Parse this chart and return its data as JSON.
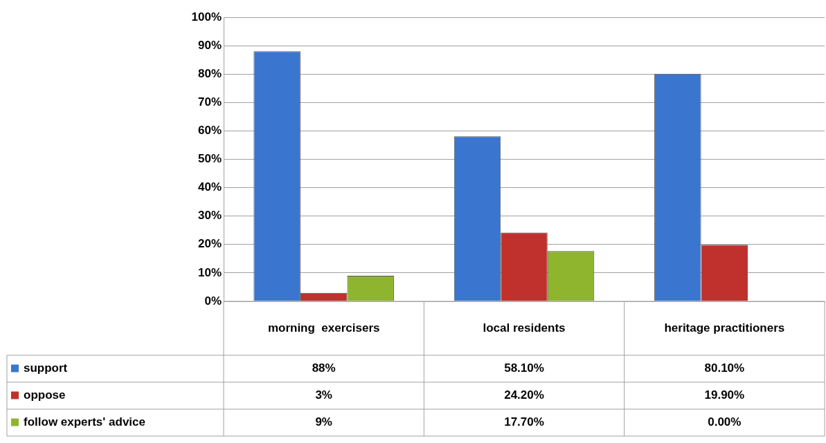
{
  "chart_data": {
    "type": "bar",
    "categories": [
      "morning  exercisers",
      "local residents",
      "heritage practitioners"
    ],
    "series": [
      {
        "name": "support",
        "color": "#3a76d0",
        "values": [
          88,
          58.1,
          80.1
        ],
        "value_labels": [
          "88%",
          "58.10%",
          "80.10%"
        ]
      },
      {
        "name": "oppose",
        "color": "#c0302c",
        "values": [
          3,
          24.2,
          19.9
        ],
        "value_labels": [
          "3%",
          "24.20%",
          "19.90%"
        ]
      },
      {
        "name": "follow experts' advice",
        "color": "#8fb52e",
        "values": [
          9,
          17.7,
          0
        ],
        "value_labels": [
          "9%",
          "17.70%",
          "0.00%"
        ]
      }
    ],
    "ylim": [
      0,
      100
    ],
    "yticks": [
      {
        "value": 0,
        "label": "0%"
      },
      {
        "value": 10,
        "label": "10%"
      },
      {
        "value": 20,
        "label": "20%"
      },
      {
        "value": 30,
        "label": "30%"
      },
      {
        "value": 40,
        "label": "40%"
      },
      {
        "value": 50,
        "label": "50%"
      },
      {
        "value": 60,
        "label": "60%"
      },
      {
        "value": 70,
        "label": "70%"
      },
      {
        "value": 80,
        "label": "80%"
      },
      {
        "value": 90,
        "label": "90%"
      },
      {
        "value": 100,
        "label": "100%"
      }
    ],
    "grid": "y",
    "legend": "bottom left"
  }
}
